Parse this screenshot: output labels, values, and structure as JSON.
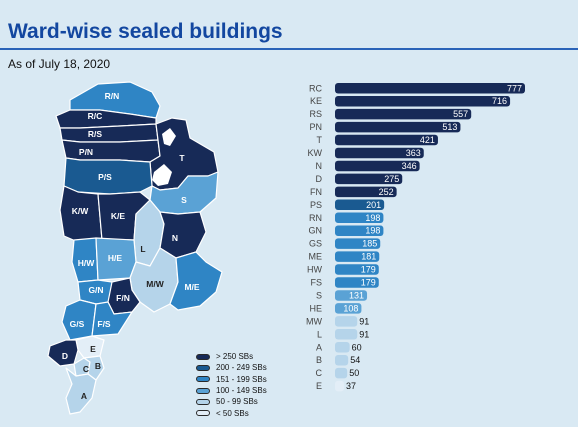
{
  "title": "Ward-wise sealed buildings",
  "subtitle": "As of July 18, 2020",
  "colors": {
    "c1": "#172a57",
    "c2": "#1a5a91",
    "c3": "#2f85c5",
    "c4": "#5aa2d5",
    "c5": "#b5d4ea",
    "c6": "#e3eef7"
  },
  "legend": [
    {
      "label": "> 250 SBs",
      "color_key": "c1"
    },
    {
      "label": "200 - 249 SBs",
      "color_key": "c2"
    },
    {
      "label": "151 - 199 SBs",
      "color_key": "c3"
    },
    {
      "label": "100 - 149 SBs",
      "color_key": "c4"
    },
    {
      "label": "50 - 99 SBs",
      "color_key": "c5"
    },
    {
      "label": "< 50 SBs",
      "color_key": "c6"
    }
  ],
  "map_labels": [
    "R/N",
    "R/C",
    "R/S",
    "P/N",
    "T",
    "P/S",
    "S",
    "K/W",
    "K/E",
    "L",
    "N",
    "H/W",
    "H/E",
    "G/N",
    "M/W",
    "M/E",
    "F/N",
    "G/S",
    "F/S",
    "E",
    "D",
    "C",
    "B",
    "A"
  ],
  "chart_data": {
    "type": "bar",
    "orientation": "horizontal",
    "categories": [
      "RC",
      "KE",
      "RS",
      "PN",
      "T",
      "KW",
      "N",
      "D",
      "FN",
      "PS",
      "RN",
      "GN",
      "GS",
      "ME",
      "HW",
      "FS",
      "S",
      "HE",
      "MW",
      "L",
      "A",
      "B",
      "C",
      "E"
    ],
    "values": [
      777,
      716,
      557,
      513,
      421,
      363,
      346,
      275,
      252,
      201,
      198,
      198,
      185,
      181,
      179,
      179,
      131,
      108,
      91,
      91,
      60,
      54,
      50,
      37
    ],
    "title": "",
    "xlabel": "",
    "ylabel": "",
    "xlim": [
      0,
      777
    ],
    "grid": false,
    "legend": "bottom-left"
  }
}
